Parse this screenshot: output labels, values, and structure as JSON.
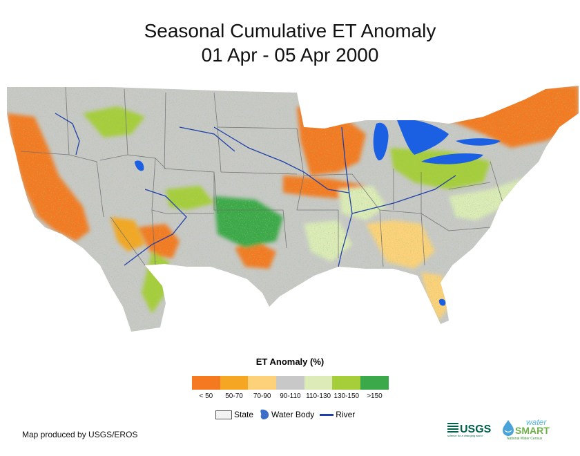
{
  "title": {
    "line1": "Seasonal Cumulative ET Anomaly",
    "line2": "01 Apr - 05 Apr 2000"
  },
  "legend": {
    "title": "ET Anomaly (%)",
    "classes": [
      {
        "label": "< 50",
        "color": "#f47920"
      },
      {
        "label": "50-70",
        "color": "#f5a623"
      },
      {
        "label": "70-90",
        "color": "#fdd17a"
      },
      {
        "label": "90-110",
        "color": "#c8c8c8"
      },
      {
        "label": "110-130",
        "color": "#dcebb8"
      },
      {
        "label": "130-150",
        "color": "#a6cd3a"
      },
      {
        "label": ">150",
        "color": "#3ba84a"
      }
    ]
  },
  "key": {
    "state": "State",
    "water": "Water Body",
    "river": "River"
  },
  "credit": "Map produced by USGS/EROS",
  "logos": {
    "usgs_text": "USGS",
    "usgs_tagline": "science for a changing world",
    "ws_top": "water",
    "ws_main": "SMART",
    "ws_sub": "National Water Census"
  },
  "colors": {
    "water": "#1b5fe3",
    "river": "#1f3fa8",
    "state_line": "#6e6e6e",
    "usgs": "#00604c"
  }
}
